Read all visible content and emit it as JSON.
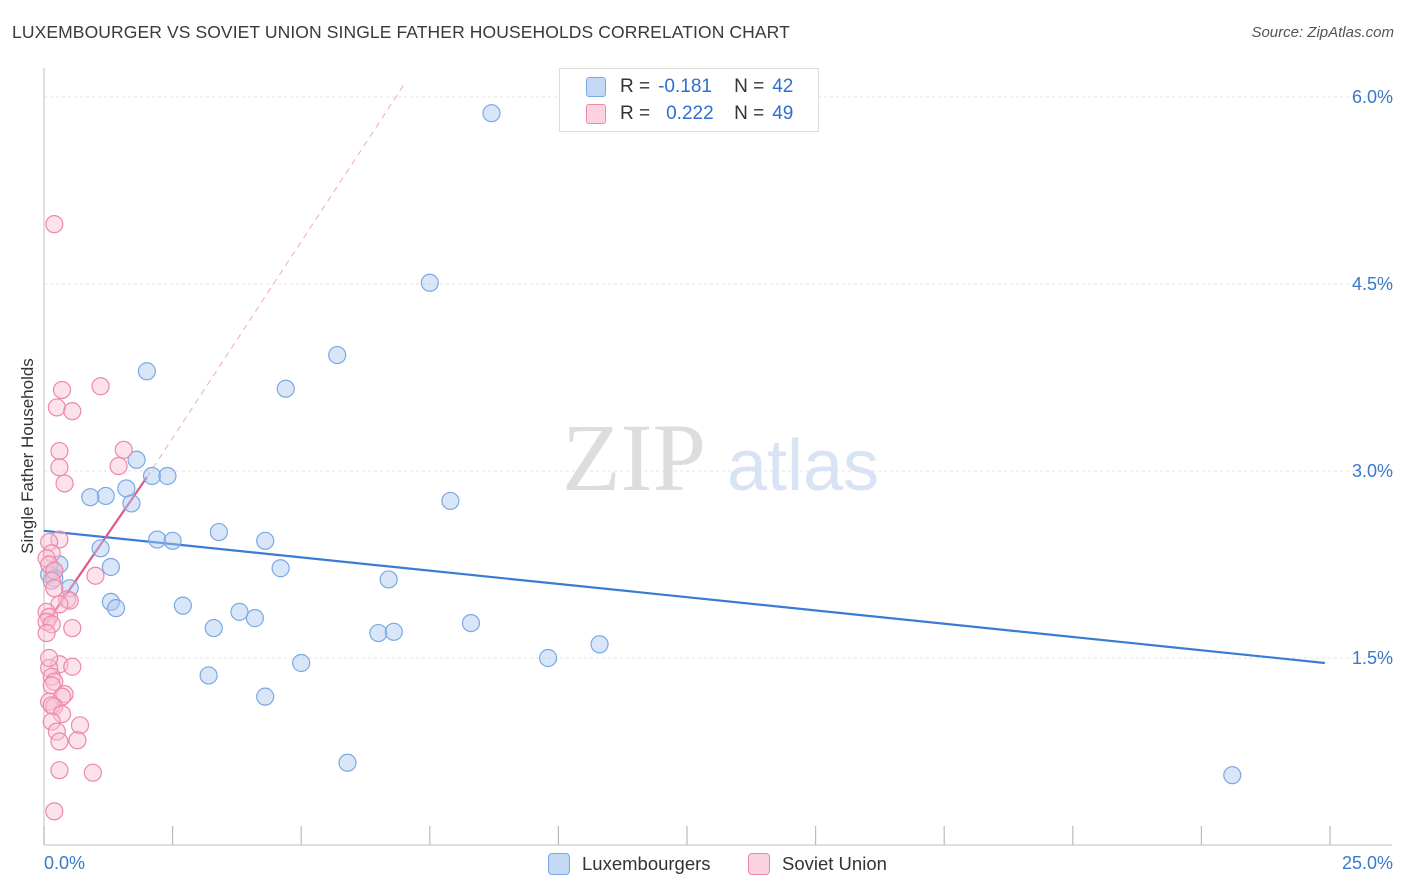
{
  "header": {
    "title": "LUXEMBOURGER VS SOVIET UNION SINGLE FATHER HOUSEHOLDS CORRELATION CHART",
    "source": "Source: ZipAtlas.com"
  },
  "watermark": {
    "zip": "ZIP",
    "atlas": "atlas"
  },
  "legend": {
    "r_label": "R =",
    "n_label": "N =",
    "series": [
      {
        "name": "Luxembourgers",
        "r": "-0.181",
        "n": "42",
        "fill": "#aac8f0",
        "stroke": "#6fa0e0"
      },
      {
        "name": "Soviet Union",
        "r": "0.222",
        "n": "49",
        "fill": "#f8c0d2",
        "stroke": "#ee88a8"
      }
    ]
  },
  "chart_data": {
    "type": "scatter",
    "title": "LUXEMBOURGER VS SOVIET UNION SINGLE FATHER HOUSEHOLDS CORRELATION CHART",
    "xlabel": "",
    "ylabel": "Single Father Households",
    "xlim": [
      0,
      25
    ],
    "ylim": [
      0,
      6.15
    ],
    "x_tick_labels": [
      "0.0%",
      "25.0%"
    ],
    "y_ticks": [
      1.5,
      3.0,
      4.5,
      6.0
    ],
    "y_tick_labels": [
      "1.5%",
      "3.0%",
      "4.5%",
      "6.0%"
    ],
    "grid": true,
    "colors": {
      "blue": "#3a7bd5",
      "pink": "#e0588a",
      "axis_text": "#3a78c9",
      "grid": "#e3e3e3"
    },
    "series": [
      {
        "name": "Luxembourgers",
        "color": "#7aa8e6",
        "fill": "rgba(170,200,240,0.45)",
        "trend": {
          "x": [
            0,
            24.9
          ],
          "y": [
            2.52,
            1.46
          ]
        },
        "points": [
          [
            8.7,
            5.87
          ],
          [
            7.5,
            4.51
          ],
          [
            5.7,
            3.93
          ],
          [
            2.0,
            3.8
          ],
          [
            4.7,
            3.66
          ],
          [
            1.8,
            3.09
          ],
          [
            2.1,
            2.96
          ],
          [
            2.4,
            2.96
          ],
          [
            1.6,
            2.86
          ],
          [
            1.2,
            2.8
          ],
          [
            0.9,
            2.79
          ],
          [
            1.7,
            2.74
          ],
          [
            7.9,
            2.76
          ],
          [
            3.4,
            2.51
          ],
          [
            2.2,
            2.45
          ],
          [
            2.5,
            2.44
          ],
          [
            4.3,
            2.44
          ],
          [
            1.1,
            2.38
          ],
          [
            0.3,
            2.25
          ],
          [
            0.2,
            2.2
          ],
          [
            1.3,
            2.23
          ],
          [
            0.1,
            2.17
          ],
          [
            0.2,
            2.14
          ],
          [
            0.5,
            2.06
          ],
          [
            4.6,
            2.22
          ],
          [
            6.7,
            2.13
          ],
          [
            1.3,
            1.95
          ],
          [
            1.4,
            1.9
          ],
          [
            2.7,
            1.92
          ],
          [
            3.8,
            1.87
          ],
          [
            4.1,
            1.82
          ],
          [
            8.3,
            1.78
          ],
          [
            3.3,
            1.74
          ],
          [
            6.5,
            1.7
          ],
          [
            6.8,
            1.71
          ],
          [
            10.8,
            1.61
          ],
          [
            9.8,
            1.5
          ],
          [
            5.0,
            1.46
          ],
          [
            3.2,
            1.36
          ],
          [
            4.3,
            1.19
          ],
          [
            5.9,
            0.66
          ],
          [
            23.1,
            0.56
          ]
        ]
      },
      {
        "name": "Soviet Union",
        "color": "#ee88a8",
        "fill": "rgba(248,192,210,0.45)",
        "trend": {
          "x": [
            0,
            2.0
          ],
          "y": [
            1.75,
            2.95
          ]
        },
        "trend_ext": {
          "x": [
            2.0,
            7.0
          ],
          "y": [
            2.95,
            6.1
          ]
        },
        "points": [
          [
            0.2,
            4.98
          ],
          [
            1.1,
            3.68
          ],
          [
            0.35,
            3.65
          ],
          [
            0.25,
            3.51
          ],
          [
            0.55,
            3.48
          ],
          [
            1.55,
            3.17
          ],
          [
            0.3,
            3.16
          ],
          [
            1.45,
            3.04
          ],
          [
            0.3,
            3.03
          ],
          [
            0.4,
            2.9
          ],
          [
            0.3,
            2.45
          ],
          [
            0.1,
            2.43
          ],
          [
            0.15,
            2.34
          ],
          [
            0.05,
            2.3
          ],
          [
            0.1,
            2.25
          ],
          [
            0.2,
            2.2
          ],
          [
            1.0,
            2.16
          ],
          [
            0.15,
            2.12
          ],
          [
            0.2,
            2.06
          ],
          [
            0.45,
            1.97
          ],
          [
            0.5,
            1.96
          ],
          [
            0.3,
            1.93
          ],
          [
            0.05,
            1.87
          ],
          [
            0.1,
            1.83
          ],
          [
            0.05,
            1.79
          ],
          [
            0.15,
            1.77
          ],
          [
            0.55,
            1.74
          ],
          [
            0.05,
            1.7
          ],
          [
            0.3,
            1.45
          ],
          [
            0.55,
            1.43
          ],
          [
            0.1,
            1.42
          ],
          [
            0.15,
            1.35
          ],
          [
            0.2,
            1.31
          ],
          [
            0.15,
            1.28
          ],
          [
            0.4,
            1.21
          ],
          [
            0.35,
            1.19
          ],
          [
            0.1,
            1.15
          ],
          [
            0.2,
            1.11
          ],
          [
            0.15,
            1.12
          ],
          [
            0.35,
            1.05
          ],
          [
            0.15,
            0.99
          ],
          [
            0.7,
            0.96
          ],
          [
            0.25,
            0.91
          ],
          [
            0.3,
            0.83
          ],
          [
            0.65,
            0.84
          ],
          [
            0.3,
            0.6
          ],
          [
            0.95,
            0.58
          ],
          [
            0.2,
            0.27
          ],
          [
            0.1,
            1.5
          ]
        ]
      }
    ]
  }
}
